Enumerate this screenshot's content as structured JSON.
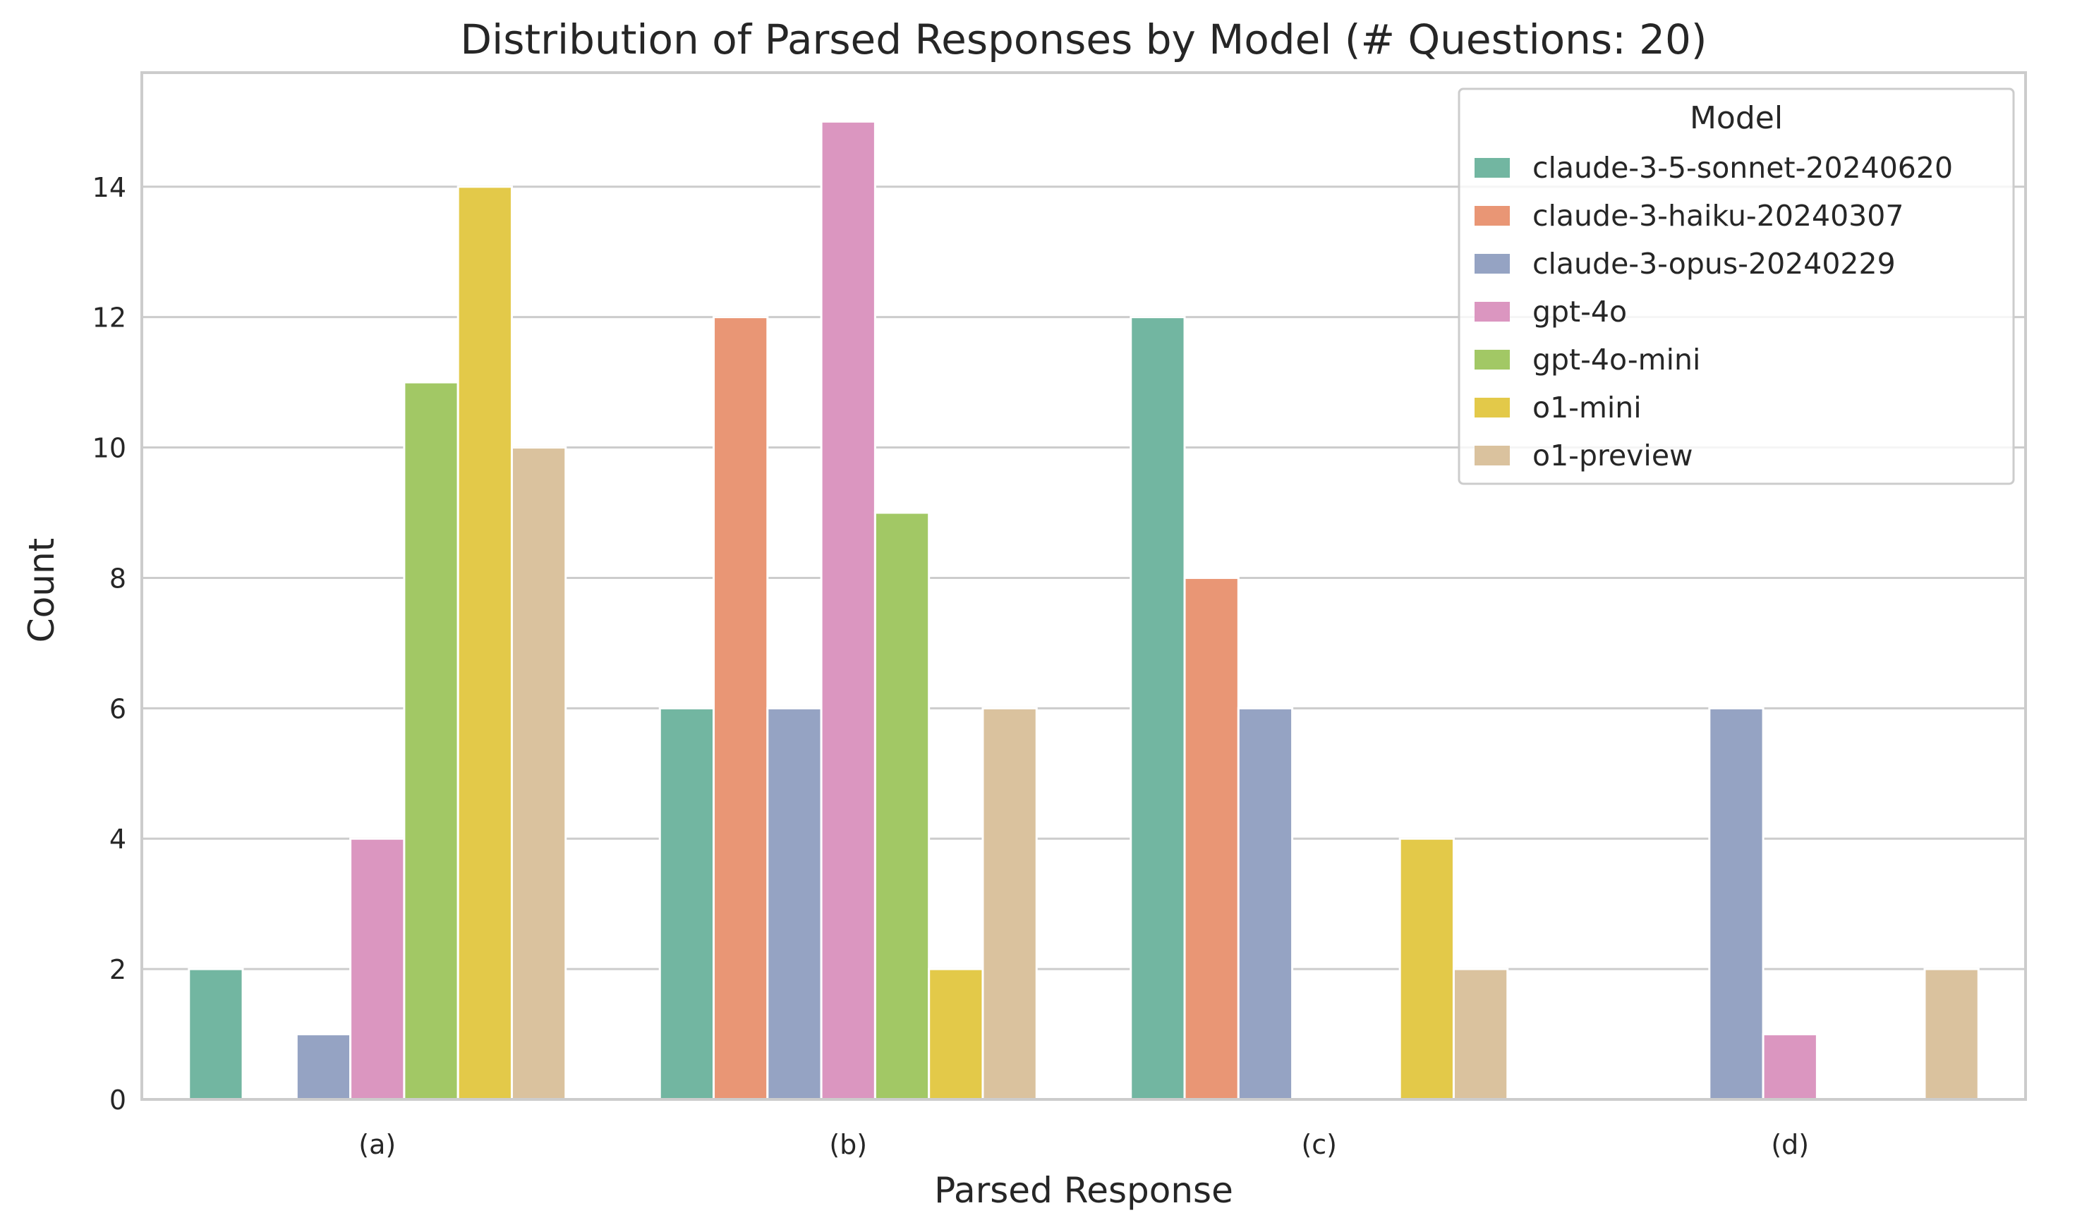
{
  "chart_data": {
    "type": "bar",
    "title": "Distribution of Parsed Responses by Model (# Questions: 20)",
    "xlabel": "Parsed Response",
    "ylabel": "Count",
    "categories": [
      "(a)",
      "(b)",
      "(c)",
      "(d)"
    ],
    "ylim": [
      0,
      15.75
    ],
    "yticks": [
      0,
      2,
      4,
      6,
      8,
      10,
      12,
      14
    ],
    "grid": "horizontal",
    "legend": {
      "title": "Model",
      "placement": "top-right"
    },
    "series": [
      {
        "name": "claude-3-5-sonnet-20240620",
        "color": "#72b6a1",
        "values": [
          2,
          6,
          12,
          0
        ]
      },
      {
        "name": "claude-3-haiku-20240307",
        "color": "#e99675",
        "values": [
          0,
          12,
          8,
          0
        ]
      },
      {
        "name": "claude-3-opus-20240229",
        "color": "#95a3c3",
        "values": [
          1,
          6,
          6,
          6
        ]
      },
      {
        "name": "gpt-4o",
        "color": "#db96c0",
        "values": [
          4,
          15,
          0,
          1
        ]
      },
      {
        "name": "gpt-4o-mini",
        "color": "#a2c865",
        "values": [
          11,
          9,
          0,
          0
        ]
      },
      {
        "name": "o1-mini",
        "color": "#e3c949",
        "values": [
          14,
          2,
          4,
          0
        ]
      },
      {
        "name": "o1-preview",
        "color": "#dac29e",
        "values": [
          10,
          6,
          2,
          2
        ]
      }
    ]
  }
}
